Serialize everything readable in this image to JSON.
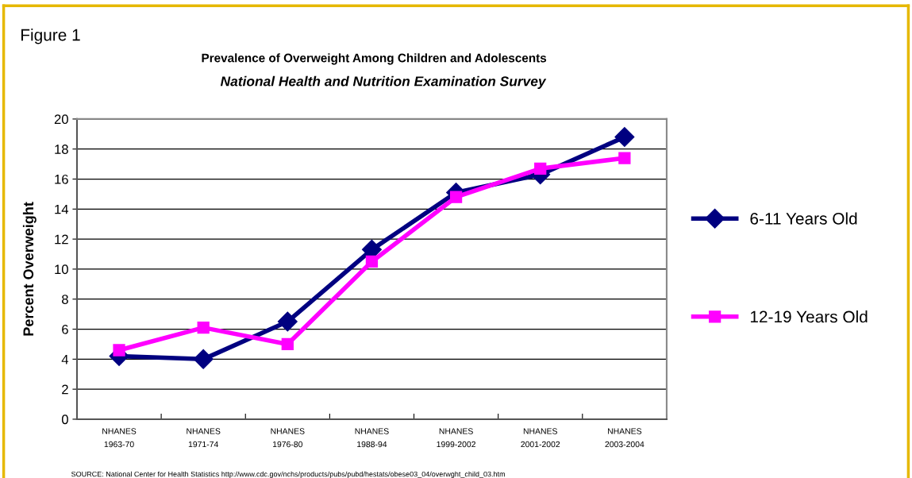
{
  "chart_data": {
    "type": "line",
    "title": "Prevalence of Overweight Among Children and Adolescents",
    "subtitle": "National Health and Nutrition Examination Survey",
    "ylabel": "Percent Overweight",
    "annotations": [
      "Figure 1",
      "SOURCE: National Center for Health Statistics http://www.cdc.gov/nchs/products/pubs/pubd/hestats/obese03_04/overwght_child_03.htm"
    ],
    "categories": [
      "NHANES\n1963-70",
      "NHANES\n1971-74",
      "NHANES\n1976-80",
      "NHANES\n1988-94",
      "NHANES\n1999-2002",
      "NHANES\n2001-2002",
      "NHANES\n2003-2004"
    ],
    "series": [
      {
        "name": "6-11 Years Old",
        "color": "#000080",
        "marker": "diamond",
        "values": [
          4.2,
          4.0,
          6.5,
          11.3,
          15.1,
          16.3,
          18.8
        ]
      },
      {
        "name": "12-19 Years Old",
        "color": "#ff00ff",
        "marker": "square",
        "values": [
          4.6,
          6.1,
          5.0,
          10.5,
          14.8,
          16.7,
          17.4
        ]
      }
    ],
    "ylim": [
      0,
      20
    ],
    "yticks": [
      0,
      2,
      4,
      6,
      8,
      10,
      12,
      14,
      16,
      18,
      20
    ],
    "grid": "y",
    "legend": "right",
    "line_style": "solid"
  }
}
